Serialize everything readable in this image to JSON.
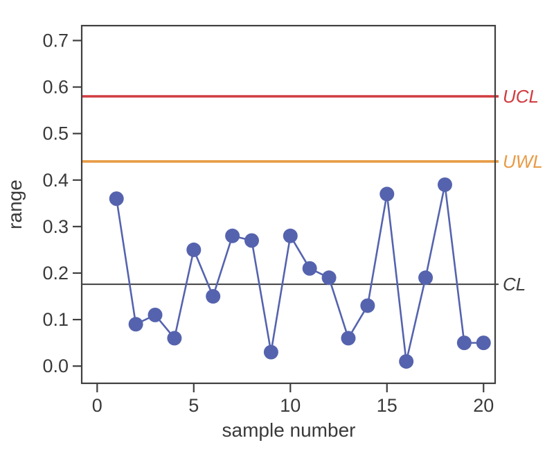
{
  "figure": {
    "kind": "precision control chart",
    "background_color": "#ffffff",
    "frame_color": "#3f3f3f",
    "text_color": "#3a3a3a"
  },
  "chart_data": {
    "type": "line",
    "title": "",
    "xlabel": "sample number",
    "ylabel": "range",
    "x": [
      1,
      2,
      3,
      4,
      5,
      6,
      7,
      8,
      9,
      10,
      11,
      12,
      13,
      14,
      15,
      16,
      17,
      18,
      19,
      20
    ],
    "series": [
      {
        "name": "range",
        "values": [
          0.36,
          0.09,
          0.11,
          0.06,
          0.25,
          0.15,
          0.28,
          0.27,
          0.03,
          0.28,
          0.21,
          0.19,
          0.06,
          0.13,
          0.37,
          0.01,
          0.19,
          0.39,
          0.05,
          0.05
        ],
        "color": "#5563ae",
        "marker": "circle",
        "marker_radius": 10.5,
        "line_width": 2.6
      }
    ],
    "xlim": [
      -0.8,
      20.6
    ],
    "ylim": [
      -0.037,
      0.732
    ],
    "xticks": [
      0,
      5,
      10,
      15,
      20
    ],
    "yticks": [
      0.0,
      0.1,
      0.2,
      0.3,
      0.4,
      0.5,
      0.6,
      0.7
    ],
    "ytick_format_decimals": 1,
    "grid": false,
    "legend": "none",
    "reference_lines": [
      {
        "label": "UCL",
        "value": 0.58,
        "color": "#d13b40",
        "width": 3.6
      },
      {
        "label": "UWL",
        "value": 0.44,
        "color": "#e89b45",
        "width": 3.6
      },
      {
        "label": "CL",
        "value": 0.176,
        "color": "#3f3f3f",
        "width": 2.0
      }
    ]
  }
}
